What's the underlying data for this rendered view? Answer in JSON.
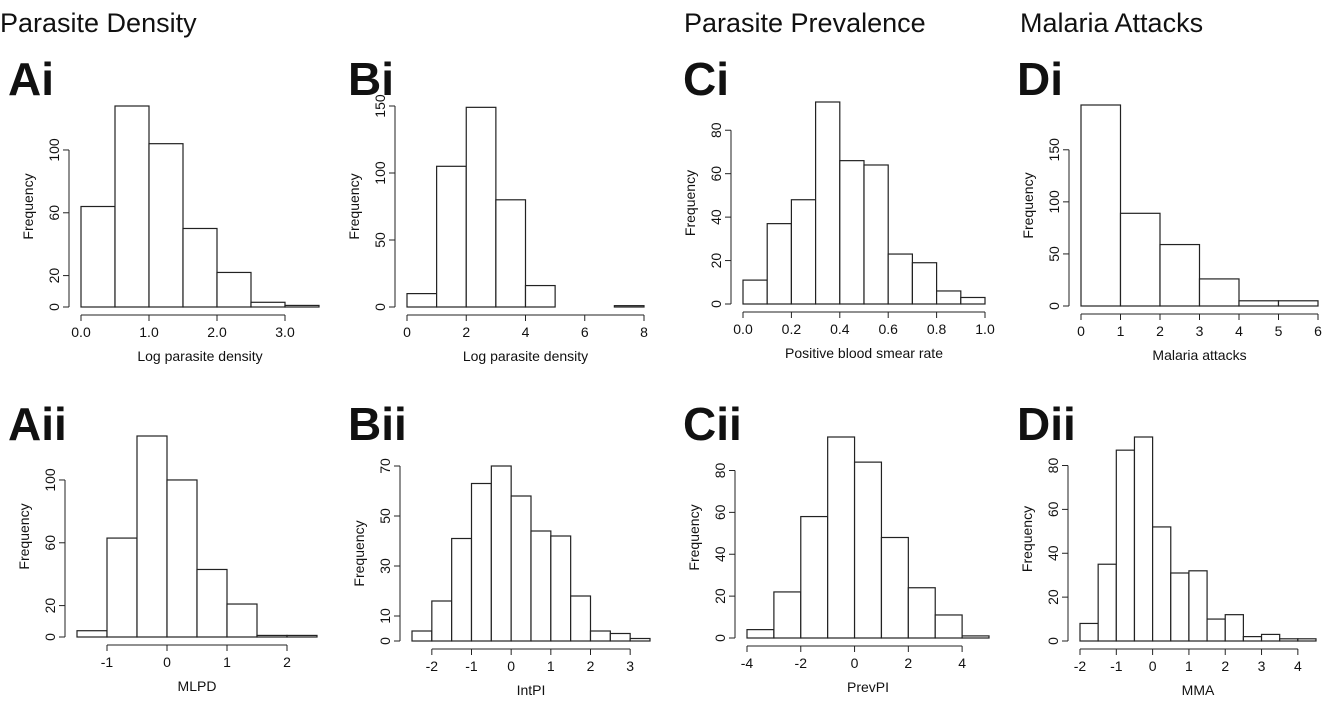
{
  "headings": [
    "Parasite Density",
    "Parasite Prevalence",
    "Malaria Attacks"
  ],
  "chart_data": [
    {
      "type": "histogram",
      "label": "Ai",
      "xlabel": "Log parasite density",
      "ylabel": "Frequency",
      "bins": [
        0,
        0.5,
        1,
        1.5,
        2,
        2.5,
        3,
        3.5
      ],
      "values": [
        64,
        128,
        104,
        50,
        22,
        3,
        1
      ],
      "xlim": [
        0,
        3.5
      ],
      "ylim": [
        0,
        128
      ],
      "xticks": [
        {
          "value": 0,
          "label": "0.0"
        },
        {
          "value": 1,
          "label": "1.0"
        },
        {
          "value": 2,
          "label": "2.0"
        },
        {
          "value": 3,
          "label": "3.0"
        }
      ],
      "yticks": [
        0,
        20,
        60,
        100
      ]
    },
    {
      "type": "histogram",
      "label": "Bi",
      "xlabel": "Log parasite density",
      "ylabel": "Frequency",
      "bins": [
        0,
        1,
        2,
        3,
        4,
        5,
        6,
        7,
        8
      ],
      "values": [
        10,
        105,
        149,
        80,
        16,
        0,
        0,
        1
      ],
      "xlim": [
        0,
        8
      ],
      "ylim": [
        0,
        150
      ],
      "xticks": [
        0,
        2,
        4,
        6,
        8
      ],
      "yticks": [
        0,
        50,
        100,
        150
      ]
    },
    {
      "type": "histogram",
      "label": "Ci",
      "xlabel": "Positive blood smear rate",
      "ylabel": "Frequency",
      "bins": [
        0,
        0.1,
        0.2,
        0.3,
        0.4,
        0.5,
        0.6,
        0.7,
        0.8,
        0.9,
        1.0
      ],
      "values": [
        11,
        37,
        48,
        93,
        66,
        64,
        23,
        19,
        6,
        3
      ],
      "xlim": [
        0,
        1
      ],
      "ylim": [
        0,
        93
      ],
      "xticks": [
        {
          "value": 0,
          "label": "0.0"
        },
        {
          "value": 0.2,
          "label": "0.2"
        },
        {
          "value": 0.4,
          "label": "0.4"
        },
        {
          "value": 0.6,
          "label": "0.6"
        },
        {
          "value": 0.8,
          "label": "0.8"
        },
        {
          "value": 1,
          "label": "1.0"
        }
      ],
      "yticks": [
        0,
        20,
        40,
        60,
        80
      ]
    },
    {
      "type": "histogram",
      "label": "Di",
      "xlabel": "Malaria attacks",
      "ylabel": "Frequency",
      "bins": [
        0,
        1,
        2,
        3,
        4,
        5,
        6
      ],
      "values": [
        193,
        89,
        59,
        26,
        5,
        5
      ],
      "xlim": [
        0,
        6
      ],
      "ylim": [
        0,
        193
      ],
      "xticks": [
        0,
        1,
        2,
        3,
        4,
        5,
        6
      ],
      "yticks": [
        0,
        50,
        100,
        150
      ]
    },
    {
      "type": "histogram",
      "label": "Aii",
      "xlabel": "MLPD",
      "ylabel": "Frequency",
      "bins": [
        -1.5,
        -1,
        -0.5,
        0,
        0.5,
        1,
        1.5,
        2,
        2.5
      ],
      "values": [
        4,
        63,
        128,
        100,
        43,
        21,
        1,
        1
      ],
      "xlim": [
        -1.5,
        2.5
      ],
      "ylim": [
        0,
        128
      ],
      "xticks": [
        -1,
        0,
        1,
        2
      ],
      "yticks": [
        0,
        20,
        60,
        100
      ]
    },
    {
      "type": "histogram",
      "label": "Bii",
      "xlabel": "IntPI",
      "ylabel": "Frequency",
      "bins": [
        -2.5,
        -2,
        -1.5,
        -1,
        -0.5,
        0,
        0.5,
        1,
        1.5,
        2,
        2.5,
        3,
        3.5
      ],
      "values": [
        4,
        16,
        41,
        63,
        70,
        58,
        44,
        42,
        18,
        4,
        3,
        1
      ],
      "xlim": [
        -2.5,
        3.5
      ],
      "ylim": [
        0,
        70
      ],
      "xticks": [
        -2,
        -1,
        0,
        1,
        2,
        3
      ],
      "yticks": [
        0,
        10,
        30,
        50,
        70
      ]
    },
    {
      "type": "histogram",
      "label": "Cii",
      "xlabel": "PrevPI",
      "ylabel": "Frequency",
      "bins": [
        -4,
        -3,
        -2,
        -1,
        0,
        1,
        2,
        3,
        4,
        5
      ],
      "values": [
        4,
        22,
        58,
        96,
        84,
        48,
        24,
        11,
        1
      ],
      "xlim": [
        -4,
        5
      ],
      "ylim": [
        0,
        96
      ],
      "xticks": [
        -4,
        -2,
        0,
        2,
        4
      ],
      "yticks": [
        0,
        20,
        40,
        60,
        80
      ]
    },
    {
      "type": "histogram",
      "label": "Dii",
      "xlabel": "MMA",
      "ylabel": "Frequency",
      "bins": [
        -2,
        -1.5,
        -1,
        -0.5,
        0,
        0.5,
        1,
        1.5,
        2,
        2.5,
        3,
        3.5,
        4,
        4.5
      ],
      "values": [
        8,
        35,
        87,
        93,
        52,
        31,
        32,
        10,
        12,
        2,
        3,
        1,
        1
      ],
      "xlim": [
        -2,
        4.5
      ],
      "ylim": [
        0,
        93
      ],
      "xticks": [
        -2,
        -1,
        0,
        1,
        2,
        3,
        4
      ],
      "yticks": [
        0,
        20,
        40,
        60,
        80
      ]
    }
  ]
}
